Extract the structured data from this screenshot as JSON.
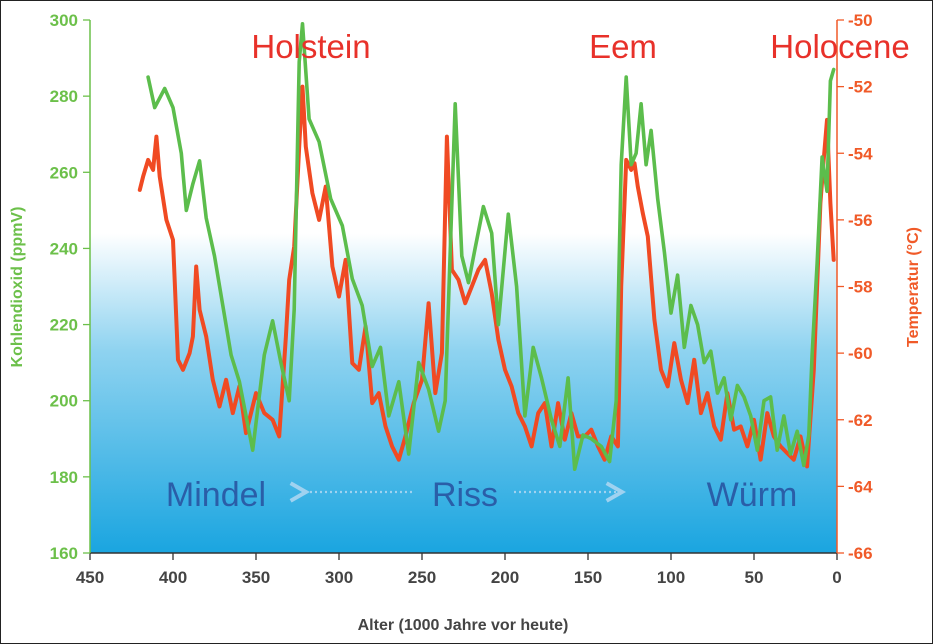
{
  "chart_data": {
    "type": "line",
    "xlabel": "Alter (1000 Jahre vor heute)",
    "ylabel_left": "Kohlendioxid (ppmV)",
    "ylabel_right": "Temperatur (°C)",
    "xlim": [
      450,
      0
    ],
    "ylim_left": [
      160,
      300
    ],
    "ylim_right": [
      -66,
      -50
    ],
    "x_ticks": [
      450,
      400,
      350,
      300,
      250,
      200,
      150,
      100,
      50,
      0
    ],
    "y_ticks_left": [
      160,
      180,
      200,
      220,
      240,
      260,
      280,
      300
    ],
    "y_ticks_right": [
      -66,
      -64,
      -62,
      -60,
      -58,
      -56,
      -54,
      -52,
      -50
    ],
    "colors": {
      "co2": "#5cbd4c",
      "temperature": "#f04a23",
      "background_top": "#ffffff",
      "background_bottom": "#1aa5e0"
    },
    "annotations": {
      "holstein": "Holstein",
      "eem": "Eem",
      "holocene": "Holocene",
      "mindel": "Mindel",
      "riss": "Riss",
      "wurm": "Würm"
    },
    "series": [
      {
        "axis": "left",
        "color": "#5cbd4c",
        "x": [
          415,
          411,
          405,
          400,
          395,
          392,
          388,
          384,
          380,
          375,
          370,
          365,
          360,
          352,
          345,
          340,
          335,
          330,
          327,
          324,
          322,
          318,
          312,
          305,
          298,
          292,
          286,
          280,
          275,
          270,
          264,
          258,
          252,
          246,
          240,
          236,
          230,
          226,
          222,
          218,
          213,
          208,
          204,
          198,
          193,
          188,
          183,
          178,
          172,
          167,
          162,
          158,
          153,
          148,
          142,
          137,
          133,
          130,
          127,
          124,
          121,
          118,
          115,
          112,
          108,
          104,
          100,
          96,
          92,
          88,
          84,
          80,
          76,
          72,
          68,
          64,
          60,
          56,
          52,
          48,
          44,
          40,
          36,
          32,
          28,
          24,
          20,
          17,
          15,
          12,
          9,
          6,
          4,
          2
        ],
        "values": [
          285,
          277,
          282,
          277,
          265,
          250,
          257,
          263,
          248,
          238,
          225,
          212,
          205,
          187,
          212,
          221,
          210,
          200,
          224,
          289,
          299,
          274,
          268,
          253,
          246,
          232,
          225,
          209,
          214,
          196,
          205,
          186,
          210,
          203,
          192,
          200,
          278,
          238,
          231,
          240,
          251,
          244,
          220,
          249,
          230,
          196,
          214,
          206,
          195,
          188,
          206,
          182,
          191,
          190,
          188,
          184,
          200,
          262,
          285,
          262,
          265,
          278,
          262,
          271,
          253,
          239,
          223,
          233,
          214,
          225,
          220,
          210,
          213,
          202,
          206,
          195,
          204,
          201,
          196,
          187,
          200,
          201,
          187,
          196,
          186,
          192,
          183,
          191,
          212,
          236,
          264,
          255,
          284,
          287
        ]
      },
      {
        "axis": "right",
        "color": "#f04a23",
        "x": [
          420,
          418,
          415,
          412,
          410,
          408,
          404,
          400,
          397,
          394,
          390,
          388,
          386,
          384,
          380,
          376,
          372,
          368,
          364,
          360,
          356,
          350,
          345,
          340,
          336,
          332,
          330,
          327,
          324,
          322,
          320,
          316,
          312,
          308,
          304,
          300,
          296,
          292,
          288,
          284,
          280,
          276,
          272,
          268,
          264,
          260,
          255,
          250,
          246,
          242,
          238,
          235,
          232,
          228,
          224,
          220,
          216,
          212,
          208,
          204,
          200,
          196,
          192,
          188,
          184,
          180,
          176,
          172,
          168,
          164,
          160,
          156,
          152,
          148,
          144,
          140,
          136,
          132,
          130,
          127,
          124,
          122,
          120,
          117,
          114,
          110,
          106,
          102,
          98,
          94,
          90,
          86,
          82,
          78,
          74,
          70,
          66,
          62,
          58,
          54,
          50,
          46,
          42,
          38,
          34,
          30,
          26,
          22,
          18,
          14,
          10,
          8,
          6,
          4,
          2
        ],
        "values": [
          -55.1,
          -54.7,
          -54.2,
          -54.5,
          -53.5,
          -54.7,
          -56,
          -56.6,
          -60.2,
          -60.5,
          -60,
          -59.5,
          -57.4,
          -58.7,
          -59.5,
          -60.8,
          -61.6,
          -60.8,
          -61.8,
          -61,
          -62.4,
          -61.2,
          -61.8,
          -62,
          -62.5,
          -59.5,
          -57.8,
          -56.8,
          -53.8,
          -52,
          -53.8,
          -55.2,
          -56,
          -55,
          -57.4,
          -58.3,
          -57.2,
          -60.3,
          -60.5,
          -59.2,
          -61.5,
          -61.2,
          -62.2,
          -62.8,
          -63.2,
          -62.5,
          -61.5,
          -60.8,
          -58.5,
          -61.2,
          -60,
          -53.5,
          -57.5,
          -57.8,
          -58.5,
          -58,
          -57.5,
          -57.2,
          -58.2,
          -59.6,
          -60.5,
          -61,
          -61.8,
          -62.2,
          -62.8,
          -61.8,
          -61.5,
          -62.8,
          -61.5,
          -62.6,
          -61.8,
          -62.5,
          -62.5,
          -62.3,
          -62.8,
          -63.2,
          -62.5,
          -62.8,
          -58,
          -54.2,
          -54.5,
          -54.3,
          -55,
          -55.8,
          -56.5,
          -59,
          -60.5,
          -61,
          -59.7,
          -60.8,
          -61.5,
          -60.2,
          -61.8,
          -61.2,
          -62.2,
          -62.6,
          -61.2,
          -62.3,
          -62.2,
          -62.8,
          -62,
          -63.2,
          -61.8,
          -62.5,
          -62.8,
          -63,
          -63.2,
          -62.5,
          -63.4,
          -60.5,
          -55.5,
          -54.2,
          -53,
          -55.5,
          -57.2
        ]
      }
    ]
  }
}
